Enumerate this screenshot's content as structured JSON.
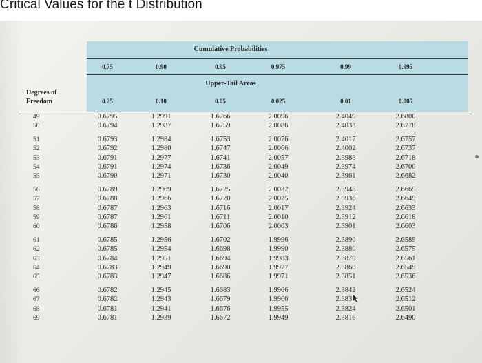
{
  "title": "Critical Values for the t Distribution",
  "table": {
    "cumulative_label": "Cumulative Probabilities",
    "upper_tail_label": "Upper-Tail Areas",
    "df_label_line1": "Degrees of",
    "df_label_line2": "Freedom",
    "cumulative": [
      "0.75",
      "0.90",
      "0.95",
      "0.975",
      "0.99",
      "0.995"
    ],
    "upper_tail": [
      "0.25",
      "0.10",
      "0.05",
      "0.025",
      "0.01",
      "0.005"
    ],
    "rows": [
      {
        "df": "49",
        "v": [
          "0.6795",
          "1.2991",
          "1.6766",
          "2.0096",
          "2.4049",
          "2.6800"
        ]
      },
      {
        "df": "50",
        "v": [
          "0.6794",
          "1.2987",
          "1.6759",
          "2.0086",
          "2.4033",
          "2.6778"
        ]
      },
      {
        "df": "51",
        "v": [
          "0.6793",
          "1.2984",
          "1.6753",
          "2.0076",
          "2.4017",
          "2.6757"
        ]
      },
      {
        "df": "52",
        "v": [
          "0.6792",
          "1.2980",
          "1.6747",
          "2.0066",
          "2.4002",
          "2.6737"
        ]
      },
      {
        "df": "53",
        "v": [
          "0.6791",
          "1.2977",
          "1.6741",
          "2.0057",
          "2.3988",
          "2.6718"
        ]
      },
      {
        "df": "54",
        "v": [
          "0.6791",
          "1.2974",
          "1.6736",
          "2.0049",
          "2.3974",
          "2.6700"
        ]
      },
      {
        "df": "55",
        "v": [
          "0.6790",
          "1.2971",
          "1.6730",
          "2.0040",
          "2.3961",
          "2.6682"
        ]
      },
      {
        "df": "56",
        "v": [
          "0.6789",
          "1.2969",
          "1.6725",
          "2.0032",
          "2.3948",
          "2.6665"
        ]
      },
      {
        "df": "57",
        "v": [
          "0.6788",
          "1.2966",
          "1.6720",
          "2.0025",
          "2.3936",
          "2.6649"
        ]
      },
      {
        "df": "58",
        "v": [
          "0.6787",
          "1.2963",
          "1.6716",
          "2.0017",
          "2.3924",
          "2.6633"
        ]
      },
      {
        "df": "59",
        "v": [
          "0.6787",
          "1.2961",
          "1.6711",
          "2.0010",
          "2.3912",
          "2.6618"
        ]
      },
      {
        "df": "60",
        "v": [
          "0.6786",
          "1.2958",
          "1.6706",
          "2.0003",
          "2.3901",
          "2.6603"
        ]
      },
      {
        "df": "61",
        "v": [
          "0.6785",
          "1.2956",
          "1.6702",
          "1.9996",
          "2.3890",
          "2.6589"
        ]
      },
      {
        "df": "62",
        "v": [
          "0.6785",
          "1.2954",
          "1.6698",
          "1.9990",
          "2.3880",
          "2.6575"
        ]
      },
      {
        "df": "63",
        "v": [
          "0.6784",
          "1.2951",
          "1.6694",
          "1.9983",
          "2.3870",
          "2.6561"
        ]
      },
      {
        "df": "64",
        "v": [
          "0.6783",
          "1.2949",
          "1.6690",
          "1.9977",
          "2.3860",
          "2.6549"
        ]
      },
      {
        "df": "65",
        "v": [
          "0.6783",
          "1.2947",
          "1.6686",
          "1.9971",
          "2.3851",
          "2.6536"
        ]
      },
      {
        "df": "66",
        "v": [
          "0.6782",
          "1.2945",
          "1.6683",
          "1.9966",
          "2.3842",
          "2.6524"
        ]
      },
      {
        "df": "67",
        "v": [
          "0.6782",
          "1.2943",
          "1.6679",
          "1.9960",
          "2.3833",
          "2.6512"
        ]
      },
      {
        "df": "68",
        "v": [
          "0.6781",
          "1.2941",
          "1.6676",
          "1.9955",
          "2.3824",
          "2.6501"
        ]
      },
      {
        "df": "69",
        "v": [
          "0.6781",
          "1.2939",
          "1.6672",
          "1.9949",
          "2.3816",
          "2.6490"
        ]
      }
    ]
  },
  "colors": {
    "header_band": "#b8dbe4",
    "paper": "#ecebe7"
  }
}
